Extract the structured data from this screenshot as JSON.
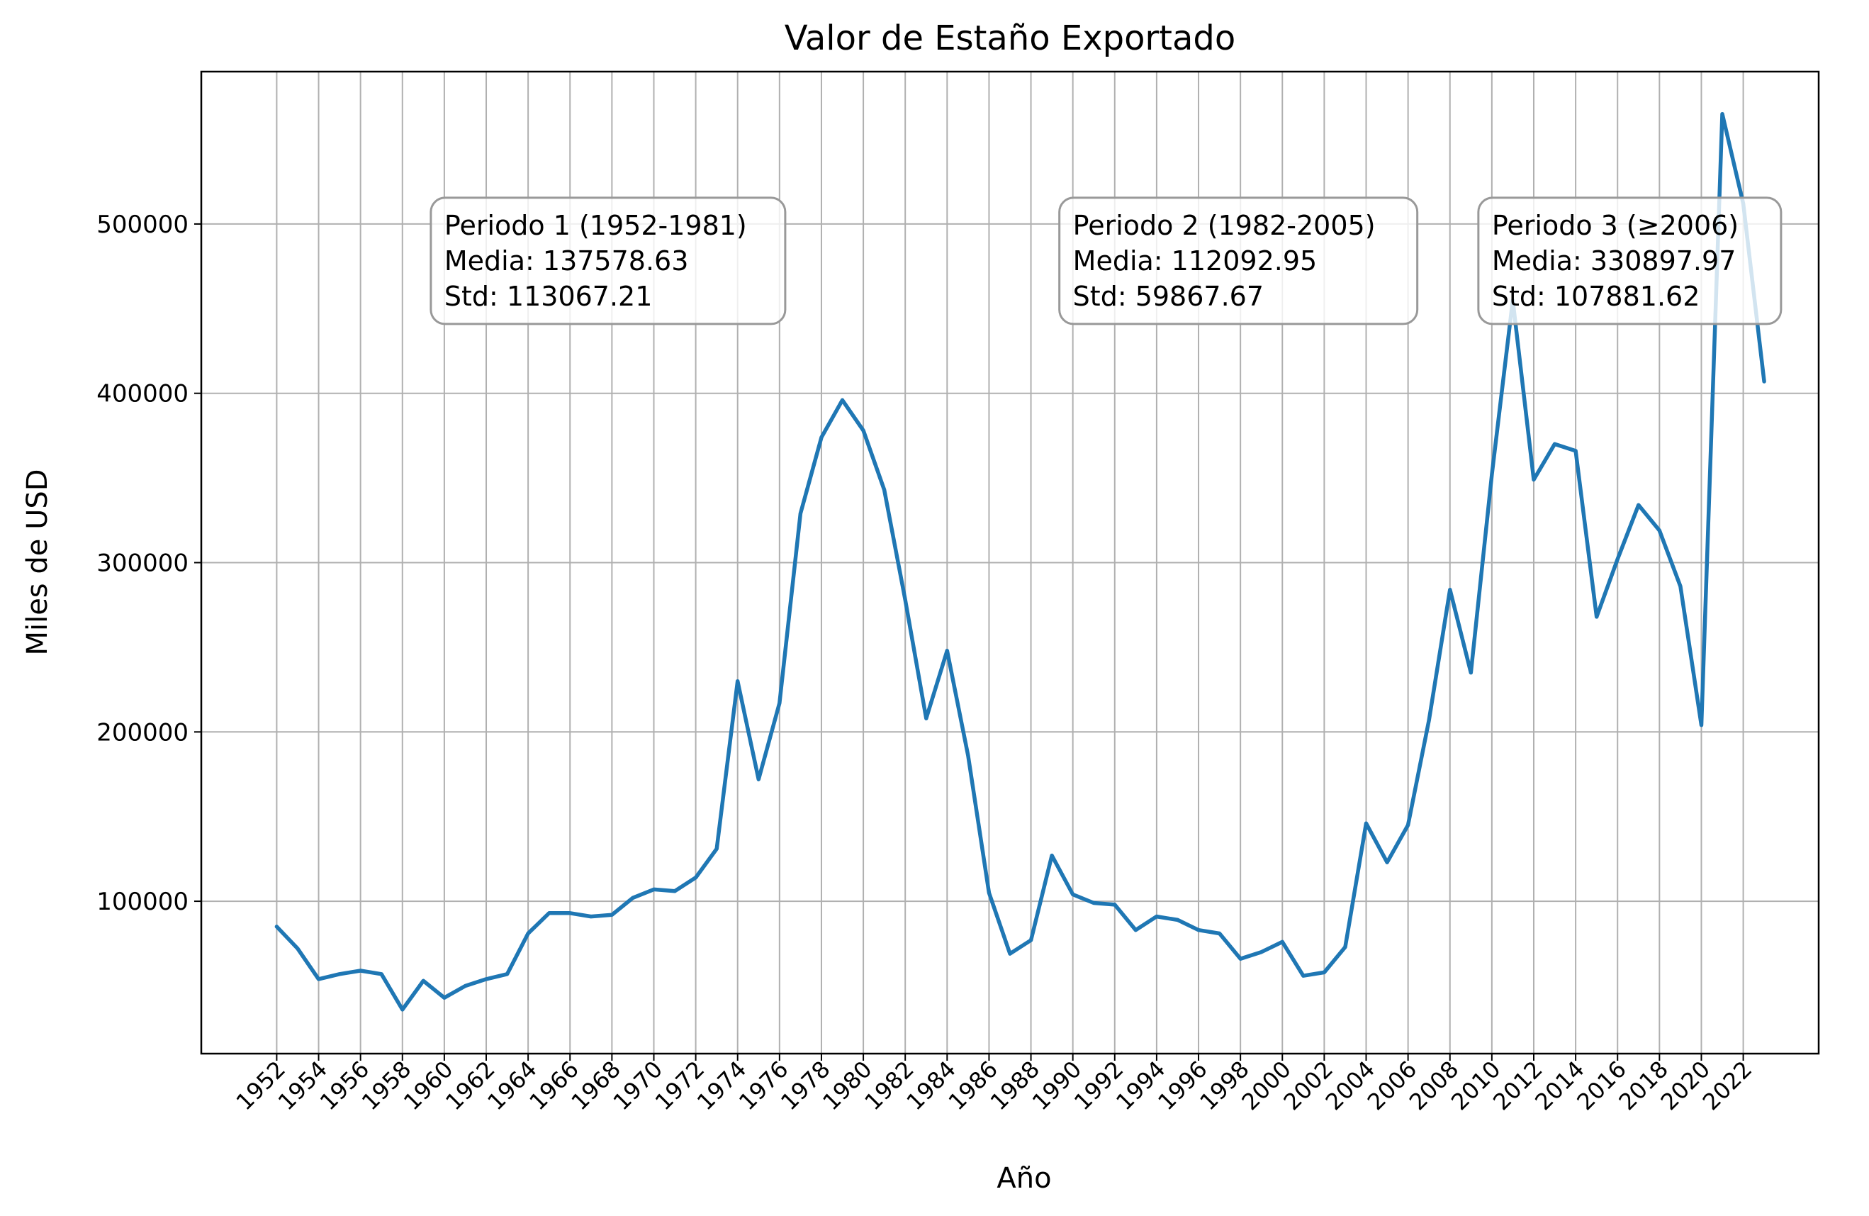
{
  "chart_data": {
    "type": "line",
    "title": "Valor de Estaño Exportado",
    "xlabel": "Año",
    "ylabel": "Miles de USD",
    "xlim": [
      1948.4,
      2025.6
    ],
    "ylim": [
      10000,
      590000
    ],
    "grid": true,
    "line_color": "#1f77b4",
    "x_ticks": [
      1952,
      1954,
      1956,
      1958,
      1960,
      1962,
      1964,
      1966,
      1968,
      1970,
      1972,
      1974,
      1976,
      1978,
      1980,
      1982,
      1984,
      1986,
      1988,
      1990,
      1992,
      1994,
      1996,
      1998,
      2000,
      2002,
      2004,
      2006,
      2008,
      2010,
      2012,
      2014,
      2016,
      2018,
      2020,
      2022
    ],
    "y_ticks": [
      100000,
      200000,
      300000,
      400000,
      500000
    ],
    "x": [
      1952,
      1953,
      1954,
      1955,
      1956,
      1957,
      1958,
      1959,
      1960,
      1961,
      1962,
      1963,
      1964,
      1965,
      1966,
      1967,
      1968,
      1969,
      1970,
      1971,
      1972,
      1973,
      1974,
      1975,
      1976,
      1977,
      1978,
      1979,
      1980,
      1981,
      1982,
      1983,
      1984,
      1985,
      1986,
      1987,
      1988,
      1989,
      1990,
      1991,
      1992,
      1993,
      1994,
      1995,
      1996,
      1997,
      1998,
      1999,
      2000,
      2001,
      2002,
      2003,
      2004,
      2005,
      2006,
      2007,
      2008,
      2009,
      2010,
      2011,
      2012,
      2013,
      2014,
      2015,
      2016,
      2017,
      2018,
      2019,
      2020,
      2021,
      2022,
      2023
    ],
    "values": [
      85000,
      72000,
      54000,
      57000,
      59000,
      57000,
      36000,
      53000,
      43000,
      50000,
      54000,
      57000,
      81000,
      93000,
      93000,
      91000,
      92000,
      102000,
      107000,
      106000,
      114000,
      131000,
      230000,
      172000,
      217000,
      329000,
      374000,
      396000,
      378000,
      343000,
      278000,
      208000,
      248000,
      186000,
      105000,
      69000,
      77000,
      127000,
      104000,
      99000,
      98000,
      83000,
      91000,
      89000,
      83000,
      81000,
      66000,
      70000,
      76000,
      56000,
      58000,
      73000,
      146000,
      123000,
      145000,
      207000,
      284000,
      235000,
      352000,
      455000,
      349000,
      370000,
      366000,
      268000,
      302000,
      334000,
      319000,
      286000,
      204000,
      565000,
      512000,
      407000
    ],
    "annotations": [
      {
        "lines": [
          "Periodo 1 (1952-1981)",
          "Media: 137578.63",
          "Std: 113067.21"
        ]
      },
      {
        "lines": [
          "Periodo 2 (1982-2005)",
          "Media: 112092.95",
          "Std: 59867.67"
        ]
      },
      {
        "lines": [
          "Periodo 3 (≥2006)",
          "Media: 330897.97",
          "Std: 107881.62"
        ]
      }
    ]
  }
}
